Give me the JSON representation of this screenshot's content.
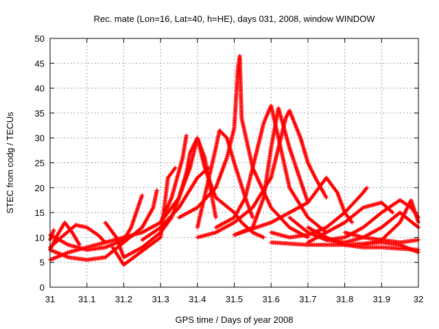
{
  "chart_data": {
    "type": "scatter",
    "title": "Rec. mate (Lon=16, Lat=40, h=HE), days 031, 2008, window WINDOW",
    "xlabel": "GPS time / Days of year 2008",
    "ylabel": "STEC from codg / TECUs",
    "xlim": [
      31,
      32
    ],
    "ylim": [
      0,
      50
    ],
    "x_ticks": [
      31,
      31.1,
      31.2,
      31.3,
      31.4,
      31.5,
      31.6,
      31.7,
      31.8,
      31.9,
      32
    ],
    "x_tick_labels": [
      "31",
      "31.1",
      "31.2",
      "31.3",
      "31.4",
      "31.5",
      "31.6",
      "31.7",
      "31.8",
      "31.9",
      "32"
    ],
    "y_ticks": [
      0,
      5,
      10,
      15,
      20,
      25,
      30,
      35,
      40,
      45,
      50
    ],
    "y_tick_labels": [
      "0",
      "5",
      "10",
      "15",
      "20",
      "25",
      "30",
      "35",
      "40",
      "45",
      "50"
    ],
    "grid": true,
    "marker": "+",
    "color": "#ff0000",
    "series": [
      {
        "x": [
          31.0,
          31.05,
          31.1,
          31.15,
          31.2,
          31.22,
          31.25
        ],
        "y": [
          10.5,
          8.5,
          7.5,
          8.0,
          9.5,
          12.0,
          18.5
        ]
      },
      {
        "x": [
          31.0,
          31.03,
          31.07,
          31.1,
          31.13,
          31.15
        ],
        "y": [
          8.0,
          10.0,
          12.5,
          12.0,
          10.5,
          9.0
        ]
      },
      {
        "x": [
          31.0,
          31.005,
          31.01
        ],
        "y": [
          9.5,
          10.5,
          11.5
        ]
      },
      {
        "x": [
          31.0,
          31.05,
          31.1,
          31.15,
          31.2,
          31.25,
          31.3,
          31.33,
          31.36,
          31.37
        ],
        "y": [
          5.5,
          7.0,
          8.0,
          9.0,
          10.0,
          11.0,
          13.0,
          18.0,
          26.0,
          30.5
        ]
      },
      {
        "x": [
          31.0,
          31.05,
          31.1,
          31.15,
          31.2,
          31.25,
          31.28,
          31.29
        ],
        "y": [
          7.5,
          6.0,
          5.5,
          6.0,
          9.0,
          12.0,
          16.0,
          19.5
        ]
      },
      {
        "x": [
          31.0,
          31.02,
          31.04,
          31.06,
          31.08
        ],
        "y": [
          7.5,
          10.5,
          13.0,
          11.0,
          8.5
        ]
      },
      {
        "x": [
          31.15,
          31.18,
          31.2,
          31.25,
          31.3,
          31.33,
          31.35,
          31.37,
          31.38,
          31.4,
          31.42,
          31.43,
          31.44,
          31.45
        ],
        "y": [
          13.0,
          10.0,
          6.0,
          8.0,
          11.0,
          14.0,
          18.0,
          23.0,
          27.0,
          30.0,
          26.0,
          22.0,
          18.0,
          14.0
        ]
      },
      {
        "x": [
          31.17,
          31.2,
          31.3,
          31.32,
          31.34
        ],
        "y": [
          8.0,
          4.5,
          10.0,
          22.0,
          24.0
        ]
      },
      {
        "x": [
          31.3,
          31.35,
          31.38,
          31.4,
          31.42,
          31.45,
          31.5,
          31.52,
          31.55,
          31.58
        ],
        "y": [
          13.0,
          18.0,
          24.0,
          30.0,
          24.0,
          18.0,
          15.0,
          13.0,
          11.0,
          10.0
        ]
      },
      {
        "x": [
          31.25,
          31.3,
          31.35,
          31.4,
          31.43
        ],
        "y": [
          9.5,
          12.0,
          16.0,
          22.0,
          24.0
        ]
      },
      {
        "x": [
          31.35,
          31.4,
          31.45,
          31.48,
          31.5,
          31.505,
          31.51,
          31.515,
          31.52,
          31.55,
          31.6,
          31.65,
          31.7
        ],
        "y": [
          14.0,
          16.0,
          20.0,
          26.0,
          32.0,
          38.0,
          44.0,
          46.5,
          34.0,
          24.0,
          16.0,
          12.0,
          10.0
        ]
      },
      {
        "x": [
          31.4,
          31.45,
          31.46,
          31.48,
          31.5,
          31.53,
          31.55
        ],
        "y": [
          12.0,
          28.0,
          31.5,
          30.0,
          25.0,
          18.0,
          14.0
        ]
      },
      {
        "x": [
          31.45,
          31.5,
          31.53,
          31.55,
          31.58,
          31.6,
          31.62,
          31.65,
          31.7,
          31.75
        ],
        "y": [
          12.0,
          14.0,
          18.0,
          24.0,
          33.0,
          36.5,
          30.0,
          20.0,
          14.0,
          11.0
        ]
      },
      {
        "x": [
          31.4,
          31.45,
          31.5,
          31.55,
          31.6,
          31.62,
          31.64,
          31.65,
          31.68,
          31.7,
          31.72,
          31.75
        ],
        "y": [
          10.0,
          11.0,
          13.0,
          16.0,
          22.0,
          28.0,
          34.0,
          35.5,
          30.0,
          25.0,
          22.0,
          18.0
        ]
      },
      {
        "x": [
          31.5,
          31.55,
          31.58,
          31.6,
          31.62,
          31.65,
          31.7
        ],
        "y": [
          10.5,
          12.0,
          18.0,
          28.0,
          36.0,
          28.0,
          17.0
        ]
      },
      {
        "x": [
          31.5,
          31.6,
          31.7,
          31.75,
          31.78,
          31.8,
          31.82
        ],
        "y": [
          10.5,
          13.0,
          17.0,
          22.0,
          19.0,
          15.0,
          13.0
        ]
      },
      {
        "x": [
          31.6,
          31.65,
          31.7,
          31.75,
          31.8,
          31.85,
          31.86
        ],
        "y": [
          11.0,
          10.0,
          10.5,
          12.0,
          15.0,
          19.0,
          20.0
        ]
      },
      {
        "x": [
          31.65,
          31.7,
          31.75,
          31.8,
          31.85,
          31.9,
          31.95,
          32.0
        ],
        "y": [
          14.0,
          11.0,
          9.5,
          9.0,
          10.0,
          12.0,
          15.0,
          12.0
        ]
      },
      {
        "x": [
          31.7,
          31.75,
          31.8,
          31.85,
          31.9,
          31.93
        ],
        "y": [
          9.0,
          11.0,
          13.0,
          16.0,
          17.0,
          15.0
        ]
      },
      {
        "x": [
          31.75,
          31.8,
          31.85,
          31.9,
          31.95,
          31.98,
          32.0
        ],
        "y": [
          9.5,
          10.0,
          12.0,
          15.0,
          17.5,
          16.0,
          14.0
        ]
      },
      {
        "x": [
          31.6,
          31.7,
          31.8,
          31.9,
          31.95,
          32.0
        ],
        "y": [
          9.0,
          8.5,
          8.5,
          9.0,
          8.5,
          7.0
        ]
      },
      {
        "x": [
          31.8,
          31.85,
          31.9,
          31.95,
          32.0
        ],
        "y": [
          11.0,
          10.0,
          9.5,
          9.0,
          9.5
        ]
      },
      {
        "x": [
          31.85,
          31.9,
          31.95,
          31.98,
          32.0
        ],
        "y": [
          8.5,
          9.5,
          13.0,
          17.5,
          13.0
        ]
      },
      {
        "x": [
          31.7,
          31.75,
          31.8,
          31.85,
          31.9,
          32.0
        ],
        "y": [
          12.0,
          10.0,
          8.5,
          8.0,
          8.0,
          7.5
        ]
      }
    ]
  }
}
